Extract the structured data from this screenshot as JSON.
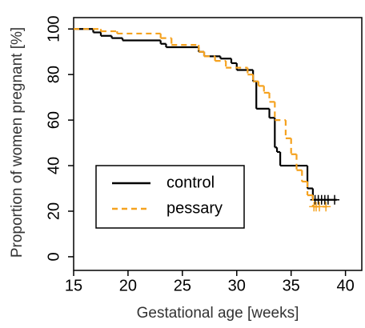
{
  "chart_data": {
    "type": "step",
    "x_label": "Gestational age [weeks]",
    "y_label": "Proportion of women pregnant [%]",
    "xlim": [
      15,
      41.5
    ],
    "ylim": [
      -6,
      105
    ],
    "xticks": [
      15,
      20,
      25,
      30,
      35,
      40
    ],
    "yticks": [
      0,
      20,
      40,
      60,
      80,
      100
    ],
    "legend": "bottomleft",
    "series": [
      {
        "name": "control",
        "color": "#000000",
        "dash": false,
        "x": [
          15,
          16.8,
          17.5,
          18.5,
          19.5,
          23,
          23.5,
          26.5,
          27,
          28.5,
          29.5,
          30,
          31.5,
          31.8,
          33,
          33.5,
          33.7,
          34,
          36.5,
          37,
          39.2
        ],
        "values": [
          100,
          98.5,
          97,
          96,
          95,
          93.5,
          92,
          90,
          88,
          87,
          85,
          82,
          77,
          65,
          61,
          48,
          46,
          40,
          30,
          25,
          25
        ],
        "censored": {
          "x": [
            37.2,
            37.5,
            37.8,
            38.1,
            38.4,
            39
          ],
          "values": [
            25,
            25,
            25,
            25,
            25,
            25
          ]
        }
      },
      {
        "name": "pessary",
        "color": "#f5a21f",
        "dash": true,
        "x": [
          15,
          17.5,
          19,
          23,
          24,
          26.5,
          27,
          28,
          29,
          31,
          31.5,
          32,
          32.5,
          33,
          33.5,
          34.5,
          35,
          35.5,
          36,
          36.5,
          37,
          38.3
        ],
        "values": [
          100,
          99,
          98,
          96,
          93,
          90,
          88,
          86,
          83,
          80,
          77,
          75,
          72,
          68,
          60,
          52,
          45,
          38,
          33,
          27,
          22,
          22
        ],
        "censored": {
          "x": [
            37.1,
            37.3,
            37.6,
            38.2
          ],
          "values": [
            22,
            22,
            22,
            22
          ]
        }
      }
    ]
  }
}
